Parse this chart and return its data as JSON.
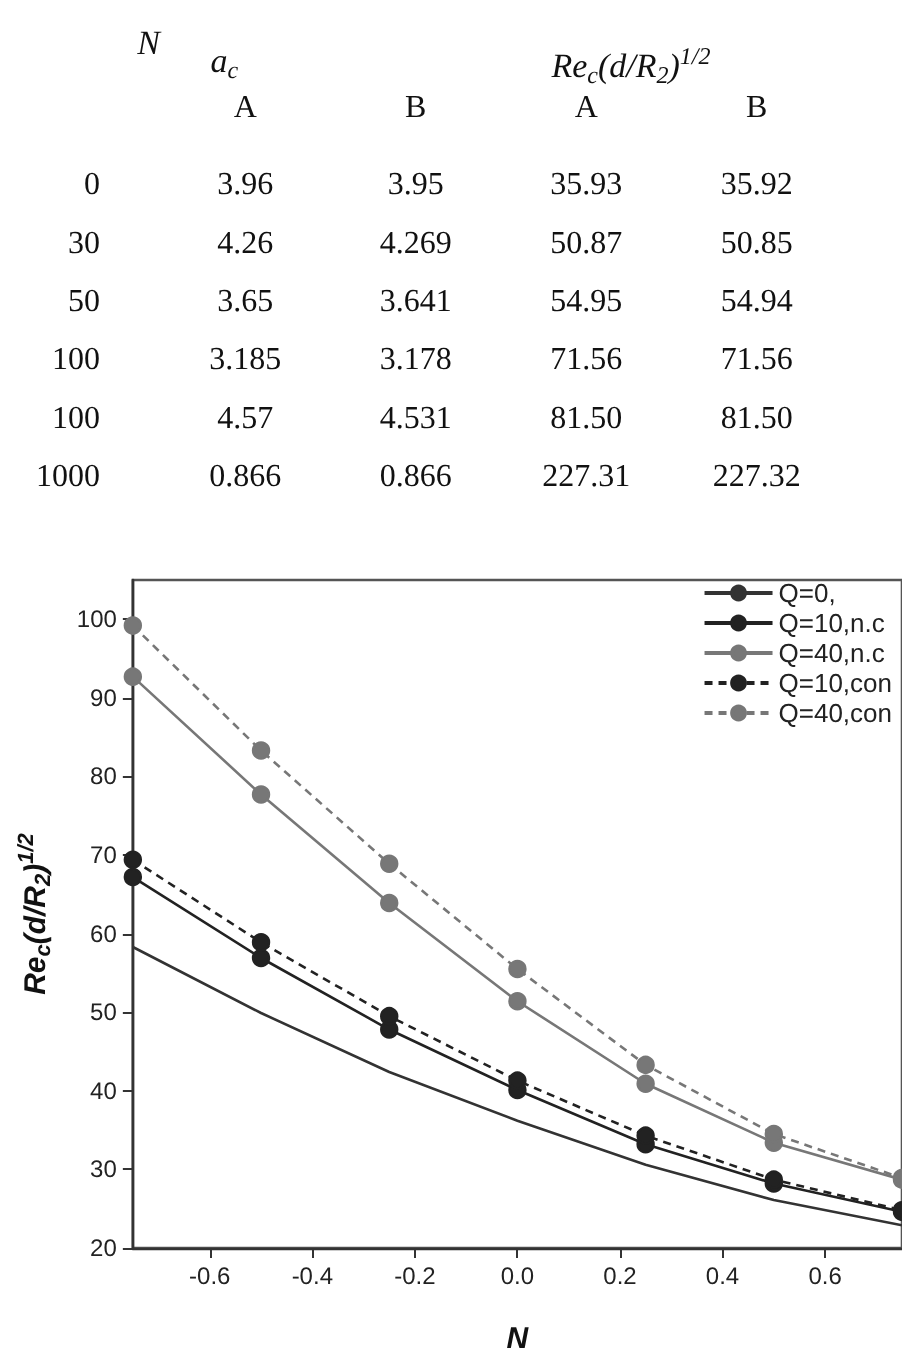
{
  "chart_data": [
    {
      "type": "heatmap",
      "ylabel": "N",
      "annotations": [
        "a$_{c}$",
        "Re$_{c}$(d/R$_{2}$)$^{1/2}$"
      ],
      "categories": [
        "A",
        "B",
        "A",
        "B"
      ],
      "y_categories": [
        "0",
        "30",
        "50",
        "100",
        "100",
        "1000"
      ],
      "cells": [
        [
          3.96,
          3.95,
          35.93,
          35.92
        ],
        [
          4.26,
          4.269,
          50.87,
          50.85
        ],
        [
          3.65,
          3.641,
          54.95,
          54.94
        ],
        [
          3.185,
          3.178,
          71.56,
          71.56
        ],
        [
          4.57,
          4.531,
          81.5,
          81.5
        ],
        [
          0.866,
          0.866,
          227.31,
          227.32
        ]
      ],
      "cell_labels": [
        [
          "3.96",
          "3.95",
          "35.93",
          "35.92"
        ],
        [
          "4.26",
          "4.269",
          "50.87",
          "50.85"
        ],
        [
          "3.65",
          "3.641",
          "54.95",
          "54.94"
        ],
        [
          "3.185",
          "3.178",
          "71.56",
          "71.56"
        ],
        [
          "4.57",
          "4.531",
          "81.50",
          "81.50"
        ],
        [
          "0.866",
          "0.866",
          "227.31",
          "227.32"
        ]
      ]
    },
    {
      "type": "line",
      "xlabel": "N",
      "ylabel": "Re$_{c}$(d/R$_{2}$)$^{1/2}$",
      "x": [
        -0.75,
        -0.5,
        -0.25,
        0,
        0.25,
        0.5,
        0.75
      ],
      "xlim": [
        -0.75,
        0.75
      ],
      "xticks": [
        -0.6,
        -0.4,
        -0.2,
        {
          "value": 0,
          "label": "0.0"
        },
        0.2,
        0.4,
        0.6
      ],
      "ylim": [
        20,
        105
      ],
      "yticks": [
        20,
        30,
        40,
        50,
        60,
        70,
        80,
        90,
        100
      ],
      "grid": false,
      "legend": "top right",
      "series": [
        {
          "name": "Q=0,",
          "color": "#333333",
          "marker": "none",
          "line_style": "solid",
          "values": [
            58.3,
            49.9,
            42.4,
            36.2,
            30.6,
            26.1,
            22.9
          ]
        },
        {
          "name": "Q=10,n.c",
          "color": "#222222",
          "marker": "circle",
          "line_style": "solid",
          "values": [
            67.2,
            56.9,
            47.8,
            40.1,
            33.2,
            28.2,
            24.6
          ]
        },
        {
          "name": "Q=40,n.c",
          "color": "#777777",
          "marker": "circle",
          "line_style": "solid",
          "values": [
            92.7,
            77.7,
            63.9,
            51.4,
            40.9,
            33.4,
            28.7
          ]
        },
        {
          "name": "Q=10,con",
          "color": "#222222",
          "marker": "circle",
          "line_style": "dashed",
          "values": [
            69.4,
            58.9,
            49.5,
            41.3,
            34.3,
            28.7,
            24.8
          ]
        },
        {
          "name": "Q=40,con",
          "color": "#777777",
          "marker": "circle",
          "line_style": "dashed",
          "values": [
            99.2,
            83.3,
            68.9,
            55.5,
            43.3,
            34.5,
            28.9
          ]
        }
      ]
    }
  ]
}
